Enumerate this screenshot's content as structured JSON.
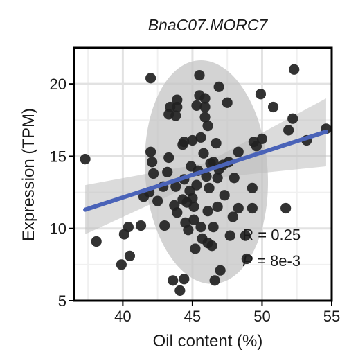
{
  "chart_data": {
    "type": "scatter",
    "title": "BnaC07.MORC7",
    "xlabel": "Oil content (%)",
    "ylabel": "Expression (TPM)",
    "xlim": [
      36.5,
      55.0
    ],
    "ylim": [
      5,
      22.5
    ],
    "xticks": [
      40,
      45,
      50,
      55
    ],
    "yticks": [
      5,
      10,
      15,
      20
    ],
    "grid": true,
    "points": [
      {
        "x": 37.3,
        "y": 14.8
      },
      {
        "x": 38.1,
        "y": 9.1
      },
      {
        "x": 39.9,
        "y": 7.5
      },
      {
        "x": 40.1,
        "y": 9.6
      },
      {
        "x": 40.4,
        "y": 10.1
      },
      {
        "x": 40.5,
        "y": 8.1
      },
      {
        "x": 41.3,
        "y": 10.2
      },
      {
        "x": 41.5,
        "y": 12.2
      },
      {
        "x": 41.9,
        "y": 12.5
      },
      {
        "x": 42.0,
        "y": 20.4
      },
      {
        "x": 42.0,
        "y": 15.3
      },
      {
        "x": 42.1,
        "y": 14.6
      },
      {
        "x": 42.2,
        "y": 13.8
      },
      {
        "x": 42.5,
        "y": 11.9
      },
      {
        "x": 42.9,
        "y": 12.9
      },
      {
        "x": 43.0,
        "y": 10.2
      },
      {
        "x": 43.2,
        "y": 13.9
      },
      {
        "x": 43.3,
        "y": 14.9
      },
      {
        "x": 43.3,
        "y": 17.9
      },
      {
        "x": 43.4,
        "y": 18.4
      },
      {
        "x": 43.6,
        "y": 6.4
      },
      {
        "x": 43.7,
        "y": 11.6
      },
      {
        "x": 43.8,
        "y": 12.9
      },
      {
        "x": 43.8,
        "y": 17.8
      },
      {
        "x": 43.9,
        "y": 18.4
      },
      {
        "x": 43.9,
        "y": 18.9
      },
      {
        "x": 43.9,
        "y": 11.1
      },
      {
        "x": 44.1,
        "y": 5.7
      },
      {
        "x": 44.3,
        "y": 12.0
      },
      {
        "x": 44.3,
        "y": 15.8
      },
      {
        "x": 44.4,
        "y": 6.5
      },
      {
        "x": 44.4,
        "y": 13.4
      },
      {
        "x": 44.4,
        "y": 16.0
      },
      {
        "x": 44.5,
        "y": 10.4
      },
      {
        "x": 44.6,
        "y": 11.8
      },
      {
        "x": 44.7,
        "y": 9.9
      },
      {
        "x": 44.8,
        "y": 12.6
      },
      {
        "x": 44.9,
        "y": 14.3
      },
      {
        "x": 45.0,
        "y": 16.1
      },
      {
        "x": 45.0,
        "y": 12.1
      },
      {
        "x": 45.1,
        "y": 10.6
      },
      {
        "x": 45.1,
        "y": 11.5
      },
      {
        "x": 45.2,
        "y": 8.6
      },
      {
        "x": 45.3,
        "y": 18.5
      },
      {
        "x": 45.3,
        "y": 13.0
      },
      {
        "x": 45.4,
        "y": 14.0
      },
      {
        "x": 45.5,
        "y": 20.6
      },
      {
        "x": 45.5,
        "y": 19.2
      },
      {
        "x": 45.6,
        "y": 16.3
      },
      {
        "x": 45.6,
        "y": 10.1
      },
      {
        "x": 45.7,
        "y": 9.3
      },
      {
        "x": 45.8,
        "y": 15.2
      },
      {
        "x": 45.9,
        "y": 17.7
      },
      {
        "x": 45.9,
        "y": 18.4
      },
      {
        "x": 45.9,
        "y": 19.0
      },
      {
        "x": 46.0,
        "y": 13.6
      },
      {
        "x": 46.1,
        "y": 11.2
      },
      {
        "x": 46.1,
        "y": 9.0
      },
      {
        "x": 46.1,
        "y": 17.1
      },
      {
        "x": 46.2,
        "y": 12.8
      },
      {
        "x": 46.3,
        "y": 14.5
      },
      {
        "x": 46.4,
        "y": 8.8
      },
      {
        "x": 46.5,
        "y": 14.6
      },
      {
        "x": 46.5,
        "y": 10.1
      },
      {
        "x": 46.6,
        "y": 6.4
      },
      {
        "x": 46.7,
        "y": 15.9
      },
      {
        "x": 46.8,
        "y": 13.5
      },
      {
        "x": 46.8,
        "y": 11.5
      },
      {
        "x": 46.9,
        "y": 14.1
      },
      {
        "x": 46.9,
        "y": 19.8
      },
      {
        "x": 47.0,
        "y": 7.1
      },
      {
        "x": 47.2,
        "y": 14.4
      },
      {
        "x": 47.3,
        "y": 12.3
      },
      {
        "x": 47.5,
        "y": 18.7
      },
      {
        "x": 47.6,
        "y": 14.6
      },
      {
        "x": 47.7,
        "y": 9.5
      },
      {
        "x": 47.9,
        "y": 10.8
      },
      {
        "x": 48.0,
        "y": 13.5
      },
      {
        "x": 48.3,
        "y": 15.3
      },
      {
        "x": 48.3,
        "y": 11.4
      },
      {
        "x": 48.8,
        "y": 9.5
      },
      {
        "x": 48.9,
        "y": 7.9
      },
      {
        "x": 49.3,
        "y": 12.8
      },
      {
        "x": 49.3,
        "y": 11.4
      },
      {
        "x": 49.4,
        "y": 16.0
      },
      {
        "x": 49.6,
        "y": 15.7
      },
      {
        "x": 49.9,
        "y": 19.3
      },
      {
        "x": 50.0,
        "y": 16.2
      },
      {
        "x": 50.8,
        "y": 18.4
      },
      {
        "x": 51.7,
        "y": 11.4
      },
      {
        "x": 51.9,
        "y": 16.8
      },
      {
        "x": 52.2,
        "y": 17.6
      },
      {
        "x": 52.3,
        "y": 21.0
      },
      {
        "x": 53.2,
        "y": 16.1
      },
      {
        "x": 54.6,
        "y": 16.9
      }
    ],
    "regression_line": {
      "x0": 37.3,
      "x1": 54.6,
      "y0": 11.3,
      "y1": 16.7,
      "color": "#4a63b8"
    },
    "confidence_band": {
      "x": [
        37.3,
        46.0,
        54.6
      ],
      "lower": [
        9.6,
        13.45,
        14.3
      ],
      "upper": [
        13.0,
        14.55,
        19.0
      ],
      "color": "#bdbdbd"
    },
    "ellipse": {
      "cx": 46.0,
      "cy": 13.9,
      "rx_data": 4.4,
      "ry_data": 7.75,
      "angle_deg": -4,
      "color": "#c4c4c4"
    },
    "point_color": "#222222",
    "annotations": [
      {
        "text": "R = 0.25",
        "x": 48.6,
        "y": 9.2
      },
      {
        "prefix": "P",
        "text": " = 8e-3",
        "x": 48.6,
        "y": 7.4
      }
    ]
  }
}
